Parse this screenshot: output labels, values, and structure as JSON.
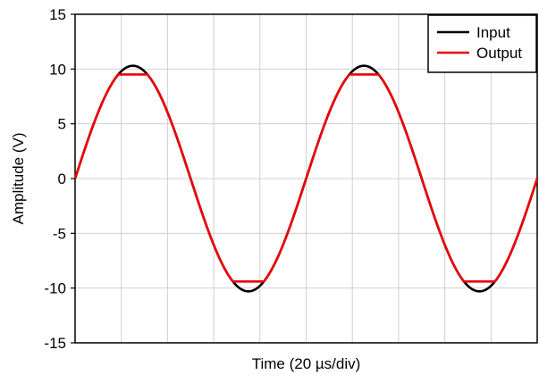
{
  "chart_data": {
    "type": "line",
    "title": "",
    "xlabel": "Time (20 µs/div)",
    "ylabel": "Amplitude (V)",
    "ylim": [
      -15,
      15
    ],
    "yticks": [
      15,
      10,
      5,
      0,
      -5,
      -10,
      -15
    ],
    "xlim": [
      0,
      200
    ],
    "x_divisions": 10,
    "grid": true,
    "legend_position": "top-right",
    "series": [
      {
        "name": "Input",
        "color": "#000000",
        "amplitude": 10.3,
        "period_us": 100,
        "x": [
          0,
          12.5,
          25,
          37.5,
          50,
          62.5,
          75,
          87.5,
          100,
          112.5,
          125,
          137.5,
          150,
          162.5,
          175,
          187.5,
          200
        ],
        "values": [
          0,
          7.28,
          10.3,
          7.28,
          0,
          -7.28,
          -10.3,
          -7.28,
          0,
          7.28,
          10.3,
          7.28,
          0,
          -7.28,
          -10.3,
          -7.28,
          0
        ]
      },
      {
        "name": "Output",
        "color": "#ee0000",
        "amplitude": 10.3,
        "period_us": 100,
        "clip_high": 9.5,
        "clip_low": -9.4,
        "x": [
          0,
          12.5,
          25,
          37.5,
          50,
          62.5,
          75,
          87.5,
          100,
          112.5,
          125,
          137.5,
          150,
          162.5,
          175,
          187.5,
          200
        ],
        "values": [
          0,
          7.28,
          9.5,
          7.28,
          0,
          -7.28,
          -9.4,
          -7.28,
          0,
          7.28,
          9.5,
          7.28,
          0,
          -7.28,
          -9.4,
          -7.28,
          0
        ]
      }
    ]
  }
}
